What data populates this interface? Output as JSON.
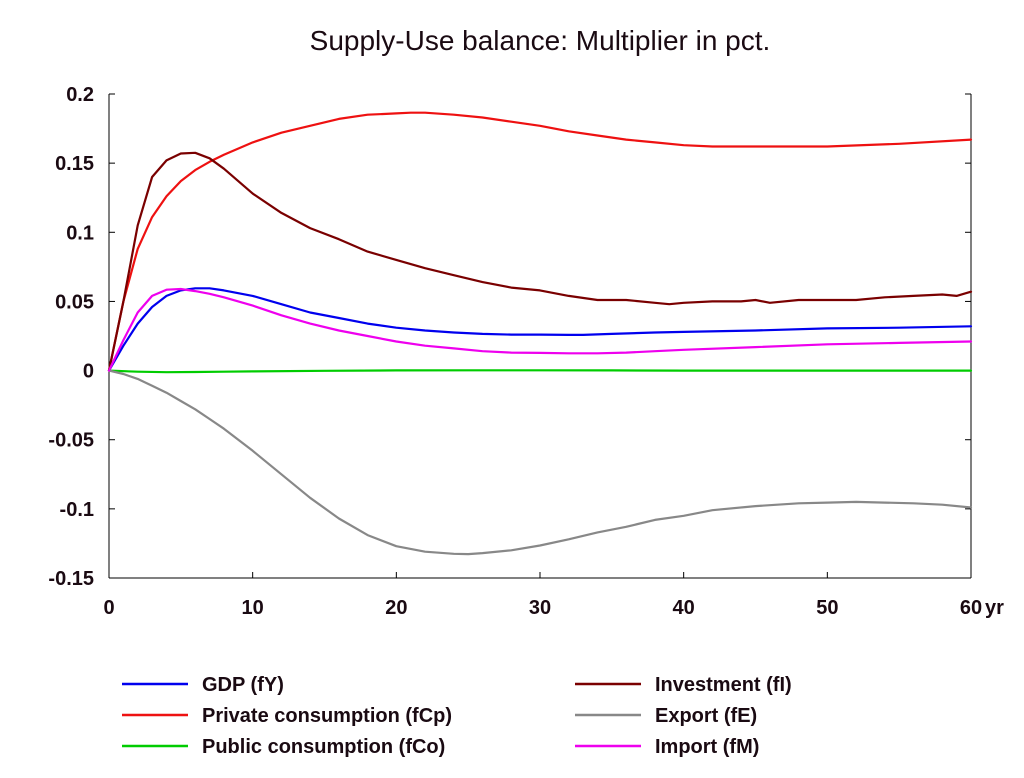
{
  "chart_data": {
    "type": "line",
    "title": "Supply-Use balance: Multiplier in pct.",
    "xlabel": "",
    "ylabel": "",
    "x_unit_label": "yr",
    "xlim": [
      0,
      60
    ],
    "ylim": [
      -0.15,
      0.2
    ],
    "x_ticks": [
      "0",
      "10",
      "20",
      "30",
      "40",
      "50",
      "60"
    ],
    "y_ticks": [
      "0.2",
      "0.15",
      "0.1",
      "0.05",
      "0",
      "-0.05",
      "-0.1",
      "-0.15"
    ],
    "grid": false,
    "legend_position": "bottom",
    "series": [
      {
        "name": "GDP (fY)",
        "color": "#0000ee",
        "x": [
          0,
          1,
          2,
          3,
          4,
          5,
          6,
          7,
          8,
          10,
          12,
          14,
          16,
          18,
          20,
          22,
          24,
          26,
          28,
          30,
          32,
          33,
          35,
          38,
          40,
          45,
          50,
          55,
          60
        ],
        "y": [
          0,
          0.018,
          0.034,
          0.046,
          0.054,
          0.058,
          0.0595,
          0.0595,
          0.058,
          0.054,
          0.048,
          0.042,
          0.038,
          0.034,
          0.031,
          0.029,
          0.0275,
          0.0265,
          0.026,
          0.026,
          0.0258,
          0.0258,
          0.0265,
          0.0275,
          0.028,
          0.029,
          0.0305,
          0.031,
          0.032
        ]
      },
      {
        "name": "Private consumption (fCp)",
        "color": "#ee1111",
        "x": [
          0,
          1,
          2,
          3,
          4,
          5,
          6,
          7,
          8,
          10,
          12,
          14,
          16,
          18,
          20,
          21,
          22,
          24,
          26,
          28,
          30,
          32,
          34,
          36,
          38,
          40,
          42,
          45,
          50,
          55,
          60
        ],
        "y": [
          0,
          0.05,
          0.088,
          0.111,
          0.126,
          0.137,
          0.145,
          0.151,
          0.156,
          0.165,
          0.172,
          0.177,
          0.182,
          0.185,
          0.186,
          0.1865,
          0.1865,
          0.185,
          0.183,
          0.18,
          0.177,
          0.173,
          0.17,
          0.167,
          0.165,
          0.163,
          0.162,
          0.162,
          0.162,
          0.164,
          0.167
        ]
      },
      {
        "name": "Public consumption (fCo)",
        "color": "#00cc00",
        "x": [
          0,
          2,
          4,
          6,
          8,
          10,
          15,
          20,
          25,
          30,
          35,
          40,
          50,
          60
        ],
        "y": [
          0,
          -0.0008,
          -0.0012,
          -0.001,
          -0.0008,
          -0.0006,
          -0.0002,
          0.0001,
          0.0002,
          0.0002,
          0.0001,
          0,
          0,
          0
        ]
      },
      {
        "name": "Investment (fI)",
        "color": "#7a0000",
        "x": [
          0,
          1,
          2,
          3,
          4,
          5,
          6,
          7,
          8,
          10,
          12,
          14,
          16,
          18,
          20,
          22,
          24,
          26,
          28,
          30,
          32,
          34,
          36,
          38,
          39,
          40,
          42,
          44,
          45,
          46,
          48,
          50,
          52,
          54,
          56,
          58,
          59,
          60
        ],
        "y": [
          0,
          0.05,
          0.105,
          0.14,
          0.152,
          0.157,
          0.1575,
          0.1535,
          0.146,
          0.128,
          0.114,
          0.103,
          0.095,
          0.086,
          0.08,
          0.074,
          0.069,
          0.064,
          0.06,
          0.058,
          0.054,
          0.051,
          0.051,
          0.049,
          0.048,
          0.049,
          0.05,
          0.05,
          0.051,
          0.049,
          0.051,
          0.051,
          0.051,
          0.053,
          0.054,
          0.055,
          0.054,
          0.057
        ]
      },
      {
        "name": "Export (fE)",
        "color": "#888888",
        "x": [
          0,
          1,
          2,
          3,
          4,
          5,
          6,
          7,
          8,
          10,
          12,
          14,
          16,
          18,
          20,
          22,
          24,
          25,
          26,
          28,
          30,
          32,
          34,
          36,
          38,
          40,
          42,
          45,
          48,
          50,
          52,
          54,
          56,
          58,
          60
        ],
        "y": [
          0,
          -0.0025,
          -0.006,
          -0.011,
          -0.016,
          -0.022,
          -0.028,
          -0.035,
          -0.042,
          -0.058,
          -0.075,
          -0.092,
          -0.107,
          -0.119,
          -0.127,
          -0.131,
          -0.1325,
          -0.1327,
          -0.132,
          -0.13,
          -0.1265,
          -0.122,
          -0.117,
          -0.113,
          -0.108,
          -0.105,
          -0.101,
          -0.098,
          -0.096,
          -0.0955,
          -0.095,
          -0.0955,
          -0.096,
          -0.097,
          -0.099
        ]
      },
      {
        "name": "Import (fM)",
        "color": "#ee00ee",
        "x": [
          0,
          1,
          2,
          3,
          4,
          5,
          6,
          7,
          8,
          10,
          12,
          14,
          16,
          18,
          20,
          22,
          24,
          26,
          28,
          30,
          32,
          34,
          36,
          38,
          40,
          45,
          50,
          55,
          60
        ],
        "y": [
          0,
          0.022,
          0.042,
          0.054,
          0.0585,
          0.059,
          0.0575,
          0.0555,
          0.053,
          0.047,
          0.04,
          0.034,
          0.029,
          0.025,
          0.021,
          0.018,
          0.016,
          0.014,
          0.013,
          0.0128,
          0.0125,
          0.0125,
          0.013,
          0.014,
          0.015,
          0.017,
          0.019,
          0.02,
          0.021
        ]
      }
    ]
  }
}
